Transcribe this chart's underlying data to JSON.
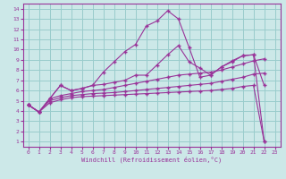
{
  "xlabel": "Windchill (Refroidissement éolien,°C)",
  "bg_color": "#cce8e8",
  "grid_color": "#99cccc",
  "line_color": "#993399",
  "xlim": [
    -0.5,
    23.5
  ],
  "ylim": [
    0.5,
    14.5
  ],
  "xticks": [
    0,
    1,
    2,
    3,
    4,
    5,
    6,
    7,
    8,
    9,
    10,
    11,
    12,
    13,
    14,
    15,
    16,
    17,
    18,
    19,
    20,
    21,
    22,
    23
  ],
  "yticks": [
    1,
    2,
    3,
    4,
    5,
    6,
    7,
    8,
    9,
    10,
    11,
    12,
    13,
    14
  ],
  "series_peak_x": [
    0,
    1,
    2,
    3,
    4,
    5,
    6,
    7,
    8,
    9,
    10,
    11,
    12,
    13,
    14,
    15,
    16,
    17,
    18,
    19,
    20,
    21,
    22
  ],
  "series_peak_y": [
    4.6,
    3.9,
    5.2,
    6.5,
    6.0,
    6.2,
    6.5,
    7.8,
    8.8,
    9.8,
    10.5,
    12.3,
    12.8,
    13.8,
    13.0,
    10.2,
    7.3,
    7.5,
    8.3,
    8.8,
    9.4,
    9.5,
    1.0
  ],
  "series_upper_x": [
    0,
    1,
    2,
    3,
    4,
    5,
    6,
    7,
    8,
    9,
    10,
    11,
    12,
    13,
    14,
    15,
    16,
    17,
    18,
    19,
    20,
    21,
    22
  ],
  "series_upper_y": [
    4.6,
    3.9,
    5.2,
    6.5,
    6.0,
    6.2,
    6.5,
    6.6,
    6.8,
    7.0,
    7.5,
    7.5,
    8.5,
    9.5,
    10.4,
    8.8,
    8.2,
    7.5,
    8.3,
    8.9,
    9.4,
    9.5,
    6.5
  ],
  "series_mid2_x": [
    0,
    1,
    2,
    3,
    4,
    5,
    6,
    7,
    8,
    9,
    10,
    11,
    12,
    13,
    14,
    15,
    16,
    17,
    18,
    19,
    20,
    21,
    22
  ],
  "series_mid2_y": [
    4.6,
    3.9,
    5.2,
    5.5,
    5.7,
    5.9,
    6.0,
    6.1,
    6.3,
    6.5,
    6.7,
    6.9,
    7.1,
    7.3,
    7.5,
    7.6,
    7.7,
    7.8,
    8.0,
    8.3,
    8.6,
    8.9,
    9.1
  ],
  "series_mid1_x": [
    0,
    1,
    2,
    3,
    4,
    5,
    6,
    7,
    8,
    9,
    10,
    11,
    12,
    13,
    14,
    15,
    16,
    17,
    18,
    19,
    20,
    21,
    22
  ],
  "series_mid1_y": [
    4.6,
    3.9,
    5.0,
    5.3,
    5.5,
    5.6,
    5.7,
    5.75,
    5.8,
    5.9,
    6.0,
    6.1,
    6.2,
    6.3,
    6.4,
    6.5,
    6.6,
    6.7,
    6.9,
    7.1,
    7.3,
    7.6,
    7.7
  ],
  "series_low_x": [
    0,
    1,
    2,
    3,
    4,
    5,
    6,
    7,
    8,
    9,
    10,
    11,
    12,
    13,
    14,
    15,
    16,
    17,
    18,
    19,
    20,
    21,
    22
  ],
  "series_low_y": [
    4.6,
    3.9,
    4.8,
    5.1,
    5.3,
    5.4,
    5.45,
    5.5,
    5.55,
    5.6,
    5.65,
    5.7,
    5.75,
    5.8,
    5.85,
    5.9,
    5.95,
    6.0,
    6.1,
    6.2,
    6.4,
    6.5,
    1.0
  ]
}
